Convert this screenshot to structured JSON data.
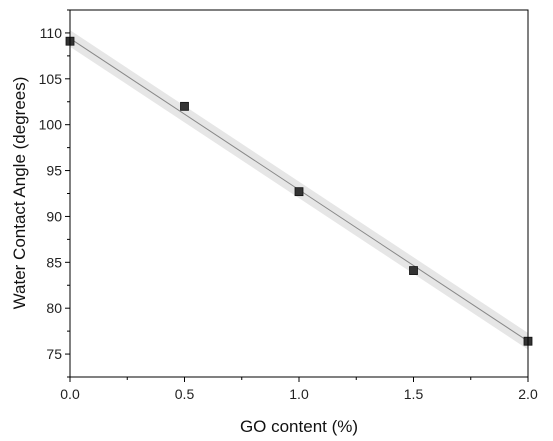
{
  "chart_data": {
    "type": "scatter",
    "xlabel": "GO content (%)",
    "ylabel": "Water Contact Angle (degrees)",
    "xlim": [
      0.0,
      2.0
    ],
    "ylim": [
      72.5,
      112.5
    ],
    "xticks": [
      0.0,
      0.5,
      1.0,
      1.5,
      2.0
    ],
    "xtick_labels": [
      "0.0",
      "0.5",
      "1.0",
      "1.5",
      "2.0"
    ],
    "yticks": [
      75,
      80,
      85,
      90,
      95,
      100,
      105,
      110
    ],
    "ytick_labels": [
      "75",
      "80",
      "85",
      "90",
      "95",
      "100",
      "105",
      "110"
    ],
    "grid": false,
    "series": [
      {
        "marker": "square",
        "color": "#333333",
        "x": [
          0.0,
          0.5,
          1.0,
          1.5,
          2.0
        ],
        "y": [
          109.1,
          102.0,
          92.7,
          84.1,
          76.4
        ]
      }
    ],
    "fit": {
      "type": "linear",
      "color": "#888888",
      "x": [
        0.0,
        2.0
      ],
      "y": [
        109.4,
        76.4
      ],
      "confidence_band": {
        "color": "#e6e6e6",
        "lower": [
          108.5,
          75.5
        ],
        "upper": [
          110.3,
          77.3
        ]
      }
    }
  }
}
